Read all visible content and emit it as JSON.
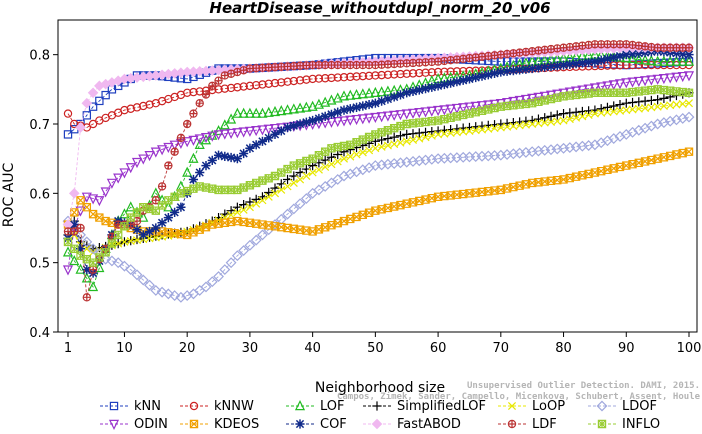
{
  "chart_data": {
    "type": "line",
    "title": "HeartDisease_withoutdupl_norm_20_v06",
    "xlabel": "Neighborhood size",
    "ylabel": "ROC AUC",
    "xlim": [
      1,
      100
    ],
    "ylim": [
      0.4,
      0.85
    ],
    "xticks": [
      1,
      10,
      20,
      30,
      40,
      50,
      60,
      70,
      80,
      90,
      100
    ],
    "yticks": [
      0.4,
      0.5,
      0.6,
      0.7,
      0.8
    ],
    "grid": false,
    "legend_placement": "bottom",
    "credit": [
      "Unsupervised Outlier Detection. DAMI, 2015.",
      "Campos, Zimek, Sander, Campello, Micenkova, Schubert, Assent, Houle"
    ],
    "series": [
      {
        "name": "kNN",
        "color": "#1f3fbf",
        "marker": "square",
        "points": [
          [
            1,
            0.685
          ],
          [
            3,
            0.7
          ],
          [
            5,
            0.725
          ],
          [
            8,
            0.75
          ],
          [
            10,
            0.76
          ],
          [
            12,
            0.77
          ],
          [
            15,
            0.77
          ],
          [
            20,
            0.765
          ],
          [
            25,
            0.78
          ],
          [
            30,
            0.78
          ],
          [
            40,
            0.785
          ],
          [
            50,
            0.795
          ],
          [
            60,
            0.795
          ],
          [
            70,
            0.79
          ],
          [
            80,
            0.79
          ],
          [
            90,
            0.785
          ],
          [
            100,
            0.79
          ]
        ]
      },
      {
        "name": "kNNW",
        "color": "#cc2222",
        "marker": "circle",
        "points": [
          [
            1,
            0.715
          ],
          [
            2,
            0.7
          ],
          [
            4,
            0.695
          ],
          [
            6,
            0.705
          ],
          [
            10,
            0.72
          ],
          [
            15,
            0.73
          ],
          [
            20,
            0.745
          ],
          [
            30,
            0.755
          ],
          [
            40,
            0.765
          ],
          [
            50,
            0.77
          ],
          [
            60,
            0.775
          ],
          [
            70,
            0.778
          ],
          [
            80,
            0.782
          ],
          [
            90,
            0.785
          ],
          [
            100,
            0.785
          ]
        ]
      },
      {
        "name": "LOF",
        "color": "#22bb22",
        "marker": "triangle",
        "points": [
          [
            1,
            0.515
          ],
          [
            3,
            0.49
          ],
          [
            5,
            0.465
          ],
          [
            7,
            0.52
          ],
          [
            9,
            0.56
          ],
          [
            11,
            0.58
          ],
          [
            13,
            0.565
          ],
          [
            15,
            0.6
          ],
          [
            17,
            0.58
          ],
          [
            19,
            0.61
          ],
          [
            22,
            0.67
          ],
          [
            25,
            0.69
          ],
          [
            28,
            0.715
          ],
          [
            32,
            0.715
          ],
          [
            36,
            0.72
          ],
          [
            40,
            0.725
          ],
          [
            45,
            0.74
          ],
          [
            50,
            0.745
          ],
          [
            55,
            0.75
          ],
          [
            60,
            0.765
          ],
          [
            65,
            0.77
          ],
          [
            70,
            0.78
          ],
          [
            75,
            0.79
          ],
          [
            80,
            0.795
          ],
          [
            85,
            0.8
          ],
          [
            90,
            0.795
          ],
          [
            95,
            0.79
          ],
          [
            100,
            0.79
          ]
        ]
      },
      {
        "name": "SimplifiedLOF",
        "color": "#000000",
        "marker": "plus",
        "points": [
          [
            1,
            0.54
          ],
          [
            2,
            0.56
          ],
          [
            3,
            0.53
          ],
          [
            5,
            0.52
          ],
          [
            8,
            0.525
          ],
          [
            10,
            0.53
          ],
          [
            13,
            0.535
          ],
          [
            16,
            0.54
          ],
          [
            20,
            0.545
          ],
          [
            24,
            0.56
          ],
          [
            28,
            0.58
          ],
          [
            32,
            0.595
          ],
          [
            36,
            0.62
          ],
          [
            40,
            0.64
          ],
          [
            45,
            0.66
          ],
          [
            50,
            0.675
          ],
          [
            55,
            0.685
          ],
          [
            60,
            0.69
          ],
          [
            65,
            0.695
          ],
          [
            70,
            0.7
          ],
          [
            75,
            0.705
          ],
          [
            80,
            0.715
          ],
          [
            85,
            0.72
          ],
          [
            90,
            0.73
          ],
          [
            95,
            0.735
          ],
          [
            100,
            0.745
          ]
        ]
      },
      {
        "name": "LoOP",
        "color": "#e8e800",
        "marker": "x",
        "points": [
          [
            1,
            0.555
          ],
          [
            3,
            0.525
          ],
          [
            5,
            0.515
          ],
          [
            8,
            0.525
          ],
          [
            10,
            0.53
          ],
          [
            14,
            0.535
          ],
          [
            18,
            0.54
          ],
          [
            22,
            0.55
          ],
          [
            26,
            0.565
          ],
          [
            30,
            0.58
          ],
          [
            35,
            0.605
          ],
          [
            40,
            0.63
          ],
          [
            45,
            0.65
          ],
          [
            50,
            0.665
          ],
          [
            55,
            0.675
          ],
          [
            60,
            0.685
          ],
          [
            65,
            0.69
          ],
          [
            70,
            0.695
          ],
          [
            75,
            0.7
          ],
          [
            80,
            0.705
          ],
          [
            85,
            0.715
          ],
          [
            90,
            0.72
          ],
          [
            95,
            0.725
          ],
          [
            100,
            0.73
          ]
        ]
      },
      {
        "name": "LDOF",
        "color": "#a0a8dd",
        "marker": "diamond",
        "points": [
          [
            1,
            0.56
          ],
          [
            3,
            0.54
          ],
          [
            5,
            0.52
          ],
          [
            7,
            0.505
          ],
          [
            9,
            0.5
          ],
          [
            11,
            0.49
          ],
          [
            13,
            0.475
          ],
          [
            15,
            0.46
          ],
          [
            17,
            0.455
          ],
          [
            19,
            0.45
          ],
          [
            21,
            0.455
          ],
          [
            23,
            0.465
          ],
          [
            25,
            0.48
          ],
          [
            28,
            0.51
          ],
          [
            32,
            0.54
          ],
          [
            36,
            0.57
          ],
          [
            40,
            0.6
          ],
          [
            45,
            0.625
          ],
          [
            50,
            0.64
          ],
          [
            55,
            0.645
          ],
          [
            60,
            0.65
          ],
          [
            70,
            0.655
          ],
          [
            80,
            0.665
          ],
          [
            85,
            0.67
          ],
          [
            90,
            0.685
          ],
          [
            95,
            0.7
          ],
          [
            100,
            0.71
          ]
        ]
      },
      {
        "name": "ODIN",
        "color": "#9933cc",
        "marker": "triangle-down",
        "points": [
          [
            1,
            0.49
          ],
          [
            2,
            0.55
          ],
          [
            3,
            0.575
          ],
          [
            4,
            0.595
          ],
          [
            6,
            0.59
          ],
          [
            8,
            0.615
          ],
          [
            10,
            0.63
          ],
          [
            12,
            0.645
          ],
          [
            15,
            0.66
          ],
          [
            18,
            0.67
          ],
          [
            20,
            0.675
          ],
          [
            25,
            0.685
          ],
          [
            30,
            0.69
          ],
          [
            40,
            0.7
          ],
          [
            50,
            0.71
          ],
          [
            60,
            0.72
          ],
          [
            70,
            0.73
          ],
          [
            80,
            0.745
          ],
          [
            90,
            0.76
          ],
          [
            100,
            0.77
          ]
        ]
      },
      {
        "name": "KDEOS",
        "color": "#f0a000",
        "marker": "square-x",
        "points": [
          [
            1,
            0.555
          ],
          [
            3,
            0.59
          ],
          [
            5,
            0.57
          ],
          [
            7,
            0.56
          ],
          [
            9,
            0.555
          ],
          [
            11,
            0.55
          ],
          [
            13,
            0.545
          ],
          [
            16,
            0.545
          ],
          [
            20,
            0.54
          ],
          [
            24,
            0.555
          ],
          [
            28,
            0.56
          ],
          [
            32,
            0.555
          ],
          [
            36,
            0.55
          ],
          [
            40,
            0.545
          ],
          [
            45,
            0.56
          ],
          [
            50,
            0.575
          ],
          [
            55,
            0.585
          ],
          [
            60,
            0.595
          ],
          [
            65,
            0.6
          ],
          [
            70,
            0.605
          ],
          [
            75,
            0.615
          ],
          [
            80,
            0.62
          ],
          [
            85,
            0.63
          ],
          [
            90,
            0.64
          ],
          [
            95,
            0.65
          ],
          [
            100,
            0.66
          ]
        ]
      },
      {
        "name": "COF",
        "color": "#102a8a",
        "marker": "asterisk",
        "points": [
          [
            1,
            0.535
          ],
          [
            2,
            0.555
          ],
          [
            3,
            0.52
          ],
          [
            4,
            0.49
          ],
          [
            5,
            0.485
          ],
          [
            7,
            0.52
          ],
          [
            9,
            0.56
          ],
          [
            11,
            0.555
          ],
          [
            13,
            0.54
          ],
          [
            15,
            0.55
          ],
          [
            17,
            0.565
          ],
          [
            19,
            0.58
          ],
          [
            21,
            0.62
          ],
          [
            23,
            0.64
          ],
          [
            25,
            0.655
          ],
          [
            28,
            0.65
          ],
          [
            30,
            0.665
          ],
          [
            33,
            0.68
          ],
          [
            36,
            0.695
          ],
          [
            40,
            0.705
          ],
          [
            45,
            0.72
          ],
          [
            50,
            0.73
          ],
          [
            55,
            0.745
          ],
          [
            60,
            0.755
          ],
          [
            65,
            0.765
          ],
          [
            70,
            0.775
          ],
          [
            75,
            0.78
          ],
          [
            80,
            0.785
          ],
          [
            85,
            0.79
          ],
          [
            90,
            0.8
          ],
          [
            95,
            0.805
          ],
          [
            100,
            0.8
          ]
        ]
      },
      {
        "name": "FastABOD",
        "color": "#f0b8f0",
        "marker": "diamond-filled",
        "points": [
          [
            1,
            0.555
          ],
          [
            2,
            0.6
          ],
          [
            3,
            0.695
          ],
          [
            4,
            0.73
          ],
          [
            5,
            0.745
          ],
          [
            6,
            0.755
          ],
          [
            8,
            0.76
          ],
          [
            10,
            0.765
          ],
          [
            15,
            0.77
          ],
          [
            20,
            0.775
          ],
          [
            30,
            0.78
          ],
          [
            40,
            0.785
          ],
          [
            50,
            0.79
          ],
          [
            60,
            0.795
          ],
          [
            70,
            0.8
          ],
          [
            80,
            0.805
          ],
          [
            90,
            0.81
          ],
          [
            100,
            0.81
          ]
        ]
      },
      {
        "name": "LDF",
        "color": "#bb3333",
        "marker": "circle-plus",
        "points": [
          [
            1,
            0.545
          ],
          [
            2,
            0.545
          ],
          [
            3,
            0.55
          ],
          [
            4,
            0.45
          ],
          [
            5,
            0.49
          ],
          [
            7,
            0.52
          ],
          [
            9,
            0.555
          ],
          [
            11,
            0.555
          ],
          [
            12,
            0.56
          ],
          [
            13,
            0.575
          ],
          [
            14,
            0.58
          ],
          [
            15,
            0.59
          ],
          [
            16,
            0.61
          ],
          [
            17,
            0.64
          ],
          [
            18,
            0.66
          ],
          [
            19,
            0.68
          ],
          [
            20,
            0.7
          ],
          [
            21,
            0.715
          ],
          [
            22,
            0.73
          ],
          [
            24,
            0.755
          ],
          [
            26,
            0.77
          ],
          [
            30,
            0.78
          ],
          [
            40,
            0.785
          ],
          [
            50,
            0.785
          ],
          [
            60,
            0.79
          ],
          [
            70,
            0.8
          ],
          [
            80,
            0.81
          ],
          [
            85,
            0.815
          ],
          [
            90,
            0.815
          ],
          [
            95,
            0.81
          ],
          [
            100,
            0.81
          ]
        ]
      },
      {
        "name": "INFLO",
        "color": "#99cc33",
        "marker": "star-square",
        "points": [
          [
            1,
            0.53
          ],
          [
            3,
            0.51
          ],
          [
            5,
            0.5
          ],
          [
            7,
            0.515
          ],
          [
            9,
            0.54
          ],
          [
            11,
            0.565
          ],
          [
            13,
            0.58
          ],
          [
            15,
            0.575
          ],
          [
            17,
            0.59
          ],
          [
            19,
            0.6
          ],
          [
            22,
            0.61
          ],
          [
            25,
            0.605
          ],
          [
            28,
            0.605
          ],
          [
            31,
            0.615
          ],
          [
            34,
            0.625
          ],
          [
            37,
            0.64
          ],
          [
            40,
            0.65
          ],
          [
            43,
            0.665
          ],
          [
            46,
            0.67
          ],
          [
            50,
            0.685
          ],
          [
            55,
            0.7
          ],
          [
            60,
            0.705
          ],
          [
            65,
            0.715
          ],
          [
            70,
            0.725
          ],
          [
            75,
            0.73
          ],
          [
            80,
            0.74
          ],
          [
            85,
            0.745
          ],
          [
            90,
            0.745
          ],
          [
            95,
            0.75
          ],
          [
            100,
            0.745
          ]
        ]
      }
    ],
    "legend": [
      [
        "kNN",
        "kNNW",
        "LOF",
        "SimplifiedLOF",
        "LoOP",
        "LDOF"
      ],
      [
        "ODIN",
        "KDEOS",
        "COF",
        "FastABOD",
        "LDF",
        "INFLO"
      ]
    ]
  }
}
